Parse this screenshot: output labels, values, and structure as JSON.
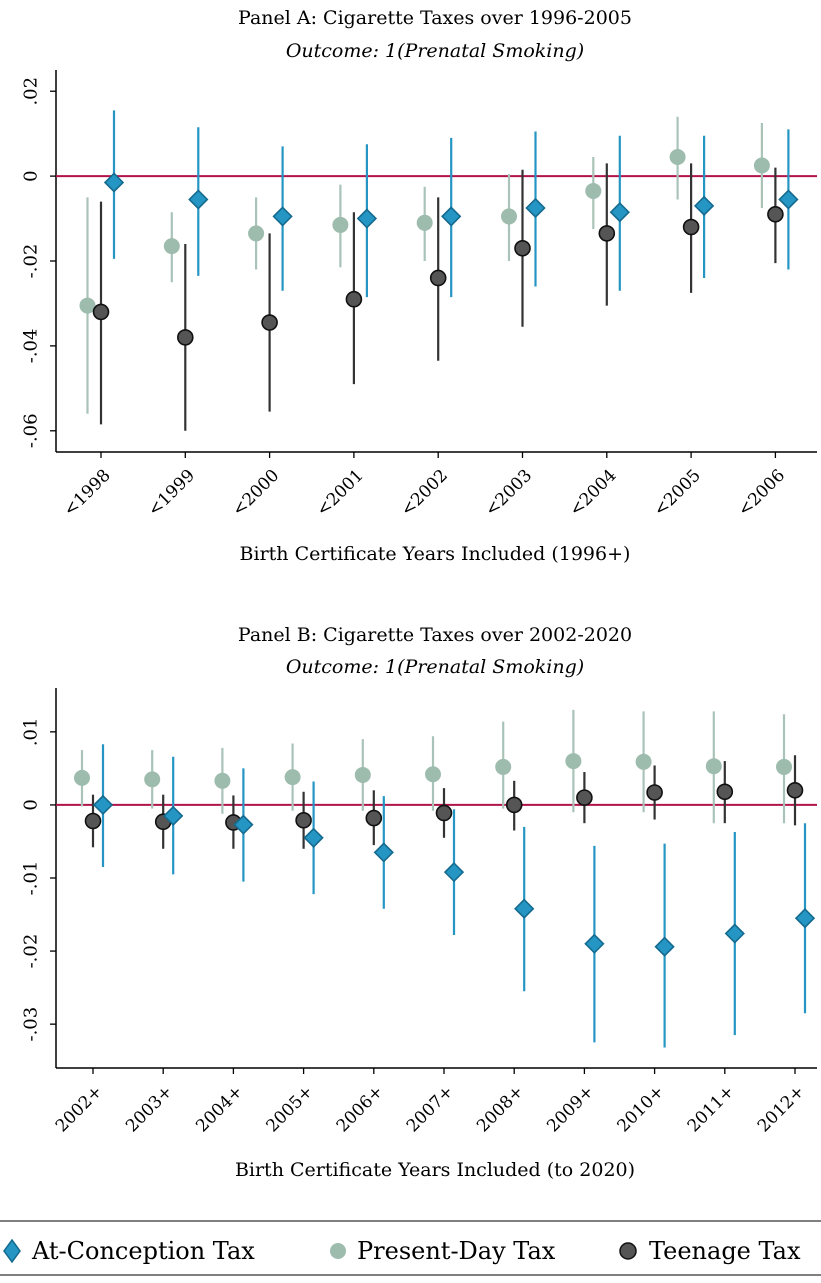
{
  "chart_data": [
    {
      "type": "scatter",
      "title": "Panel A: Cigarette Taxes over 1996-2005",
      "subtitle": "Outcome: 1(Prenatal Smoking)",
      "xlabel": "Birth Certificate Years Included (1996+)",
      "ylabel": "",
      "ylim": [
        -0.065,
        0.025
      ],
      "yticks": [
        ".02",
        "0",
        "-.02",
        "-.04",
        "-.06"
      ],
      "ytick_values": [
        0.02,
        0,
        -0.02,
        -0.04,
        -0.06
      ],
      "reference_line": 0,
      "categories": [
        "<1998",
        "<1999",
        "<2000",
        "<2001",
        "<2002",
        "<2003",
        "<2004",
        "<2005",
        "<2006"
      ],
      "series": [
        {
          "name": "Present-Day Tax",
          "color": "#9dbcae",
          "values": [
            -0.0305,
            -0.0165,
            -0.0135,
            -0.0115,
            -0.011,
            -0.0095,
            -0.0035,
            0.0045,
            0.0025
          ],
          "ci_low": [
            -0.056,
            -0.025,
            -0.022,
            -0.0215,
            -0.02,
            -0.02,
            -0.0125,
            -0.0055,
            -0.0075
          ],
          "ci_high": [
            -0.005,
            -0.0085,
            -0.005,
            -0.002,
            -0.0025,
            0.0005,
            0.0045,
            0.014,
            0.0125
          ]
        },
        {
          "name": "Teenage Tax",
          "color": "#555555",
          "values": [
            -0.032,
            -0.038,
            -0.0345,
            -0.029,
            -0.024,
            -0.017,
            -0.0135,
            -0.012,
            -0.009
          ],
          "ci_low": [
            -0.0585,
            -0.06,
            -0.0555,
            -0.049,
            -0.0435,
            -0.0355,
            -0.0305,
            -0.0275,
            -0.0205
          ],
          "ci_high": [
            -0.006,
            -0.016,
            -0.0135,
            -0.0085,
            -0.005,
            0.0015,
            0.003,
            0.003,
            0.002
          ]
        },
        {
          "name": "At-Conception Tax",
          "color": "#2596c4",
          "values": [
            -0.0015,
            -0.0055,
            -0.0095,
            -0.01,
            -0.0095,
            -0.0075,
            -0.0085,
            -0.007,
            -0.0055
          ],
          "ci_low": [
            -0.0195,
            -0.0235,
            -0.027,
            -0.0285,
            -0.0285,
            -0.026,
            -0.027,
            -0.024,
            -0.022
          ],
          "ci_high": [
            0.0155,
            0.0115,
            0.007,
            0.0075,
            0.009,
            0.0105,
            0.0095,
            0.0095,
            0.011
          ]
        }
      ]
    },
    {
      "type": "scatter",
      "title": "Panel B: Cigarette Taxes over 2002-2020",
      "subtitle": "Outcome: 1(Prenatal Smoking)",
      "xlabel": "Birth Certificate Years Included (to 2020)",
      "ylabel": "",
      "ylim": [
        -0.036,
        0.016
      ],
      "yticks": [
        ".01",
        "0",
        "-.01",
        "-.02",
        "-.03"
      ],
      "ytick_values": [
        0.01,
        0,
        -0.01,
        -0.02,
        -0.03
      ],
      "reference_line": 0,
      "categories": [
        "2002+",
        "2003+",
        "2004+",
        "2005+",
        "2006+",
        "2007+",
        "2008+",
        "2009+",
        "2010+",
        "2011+",
        "2012+"
      ],
      "series": [
        {
          "name": "Present-Day Tax",
          "color": "#9dbcae",
          "values": [
            0.0037,
            0.0035,
            0.0033,
            0.0038,
            0.0041,
            0.0042,
            0.0052,
            0.006,
            0.0059,
            0.0053,
            0.0052
          ],
          "ci_low": [
            -0.0002,
            -0.0005,
            -0.0012,
            -0.0008,
            -0.0008,
            -0.0008,
            -0.0005,
            -0.001,
            -0.001,
            -0.0025,
            -0.0025
          ],
          "ci_high": [
            0.0075,
            0.0075,
            0.0078,
            0.0084,
            0.009,
            0.0094,
            0.0114,
            0.013,
            0.0128,
            0.0128,
            0.0124
          ]
        },
        {
          "name": "Teenage Tax",
          "color": "#555555",
          "values": [
            -0.0022,
            -0.0023,
            -0.0024,
            -0.0021,
            -0.0018,
            -0.0011,
            0.0,
            0.001,
            0.0017,
            0.0018,
            0.002
          ],
          "ci_low": [
            -0.0058,
            -0.006,
            -0.006,
            -0.006,
            -0.0055,
            -0.0045,
            -0.0035,
            -0.0025,
            -0.002,
            -0.0025,
            -0.0028
          ],
          "ci_high": [
            0.0014,
            0.0014,
            0.0013,
            0.0018,
            0.002,
            0.0023,
            0.0033,
            0.0045,
            0.0054,
            0.006,
            0.0068
          ]
        },
        {
          "name": "At-Conception Tax",
          "color": "#2596c4",
          "values": [
            0.0,
            -0.0015,
            -0.0027,
            -0.0045,
            -0.0065,
            -0.0092,
            -0.0142,
            -0.019,
            -0.0194,
            -0.0176,
            -0.0155
          ],
          "ci_low": [
            -0.0085,
            -0.0095,
            -0.0105,
            -0.0122,
            -0.0142,
            -0.0178,
            -0.0255,
            -0.0325,
            -0.0332,
            -0.0315,
            -0.0285
          ],
          "ci_high": [
            0.0083,
            0.0066,
            0.005,
            0.0032,
            0.0012,
            -0.0006,
            -0.003,
            -0.0056,
            -0.0053,
            -0.0037,
            -0.0025
          ]
        }
      ]
    }
  ],
  "legend": {
    "items": [
      {
        "label": "At-Conception Tax",
        "marker": "diamond",
        "color": "#2596c4"
      },
      {
        "label": "Present-Day Tax",
        "marker": "circle",
        "color": "#9dbcae"
      },
      {
        "label": "Teenage Tax",
        "marker": "circle-dark",
        "color": "#555555"
      }
    ]
  },
  "colors": {
    "title": "#1f2d4f",
    "reference_line": "#b0134a",
    "axis": "#000000"
  }
}
